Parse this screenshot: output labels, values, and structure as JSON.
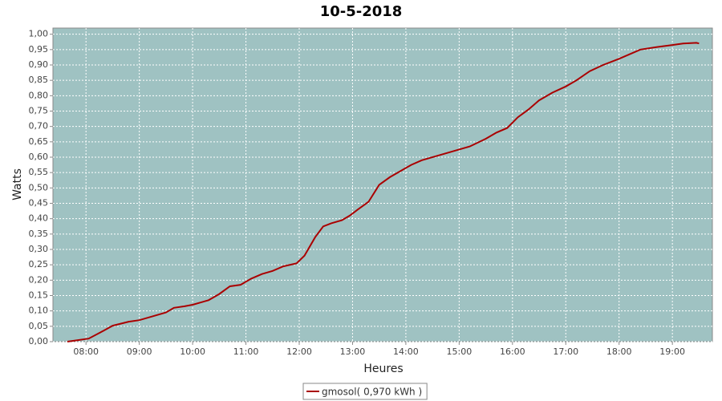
{
  "chart_data": {
    "type": "line",
    "title": "10-5-2018",
    "x_label": "Heures",
    "y_label": "Watts",
    "xlim": [
      7.38,
      19.75
    ],
    "ylim": [
      0,
      1.02
    ],
    "xticks": [
      {
        "value": 8,
        "label": "08:00"
      },
      {
        "value": 9,
        "label": "09:00"
      },
      {
        "value": 10,
        "label": "10:00"
      },
      {
        "value": 11,
        "label": "11:00"
      },
      {
        "value": 12,
        "label": "12:00"
      },
      {
        "value": 13,
        "label": "13:00"
      },
      {
        "value": 14,
        "label": "14:00"
      },
      {
        "value": 15,
        "label": "15:00"
      },
      {
        "value": 16,
        "label": "16:00"
      },
      {
        "value": 17,
        "label": "17:00"
      },
      {
        "value": 18,
        "label": "18:00"
      },
      {
        "value": 19,
        "label": "19:00"
      }
    ],
    "yticks": [
      {
        "value": 0,
        "label": "0,00"
      },
      {
        "value": 0.05,
        "label": "0,05"
      },
      {
        "value": 0.1,
        "label": "0,10"
      },
      {
        "value": 0.15,
        "label": "0,15"
      },
      {
        "value": 0.2,
        "label": "0,20"
      },
      {
        "value": 0.25,
        "label": "0,25"
      },
      {
        "value": 0.3,
        "label": "0,30"
      },
      {
        "value": 0.35,
        "label": "0,35"
      },
      {
        "value": 0.4,
        "label": "0,40"
      },
      {
        "value": 0.45,
        "label": "0,45"
      },
      {
        "value": 0.5,
        "label": "0,50"
      },
      {
        "value": 0.55,
        "label": "0,55"
      },
      {
        "value": 0.6,
        "label": "0,60"
      },
      {
        "value": 0.65,
        "label": "0,65"
      },
      {
        "value": 0.7,
        "label": "0,70"
      },
      {
        "value": 0.75,
        "label": "0,75"
      },
      {
        "value": 0.8,
        "label": "0,80"
      },
      {
        "value": 0.85,
        "label": "0,85"
      },
      {
        "value": 0.9,
        "label": "0,90"
      },
      {
        "value": 0.95,
        "label": "0,95"
      },
      {
        "value": 1,
        "label": "1,00"
      }
    ],
    "grid": true,
    "background": "#9fc2c2",
    "legend": "bottom",
    "x": [
      7.65,
      8.05,
      8.27,
      8.5,
      8.8,
      9.0,
      9.3,
      9.5,
      9.65,
      9.85,
      10.0,
      10.3,
      10.5,
      10.7,
      10.9,
      11.1,
      11.3,
      11.5,
      11.7,
      11.95,
      12.1,
      12.3,
      12.45,
      12.6,
      12.8,
      12.95,
      13.1,
      13.3,
      13.5,
      13.7,
      13.9,
      14.1,
      14.3,
      14.6,
      14.9,
      15.2,
      15.5,
      15.7,
      15.9,
      16.1,
      16.3,
      16.5,
      16.75,
      17.0,
      17.2,
      17.45,
      17.7,
      18.0,
      18.2,
      18.4,
      18.7,
      19.0,
      19.2,
      19.45,
      19.5
    ],
    "series": [
      {
        "name": "gmosol( 0,970 kWh )",
        "color": "#aa0000",
        "values": [
          0,
          0.01,
          0.03,
          0.052,
          0.065,
          0.07,
          0.085,
          0.095,
          0.11,
          0.115,
          0.12,
          0.135,
          0.155,
          0.18,
          0.185,
          0.205,
          0.22,
          0.23,
          0.245,
          0.255,
          0.28,
          0.34,
          0.375,
          0.385,
          0.395,
          0.41,
          0.43,
          0.455,
          0.51,
          0.535,
          0.555,
          0.575,
          0.59,
          0.605,
          0.62,
          0.635,
          0.66,
          0.68,
          0.695,
          0.73,
          0.755,
          0.785,
          0.81,
          0.83,
          0.85,
          0.88,
          0.9,
          0.92,
          0.935,
          0.95,
          0.958,
          0.965,
          0.97,
          0.972,
          0.97
        ]
      }
    ]
  }
}
